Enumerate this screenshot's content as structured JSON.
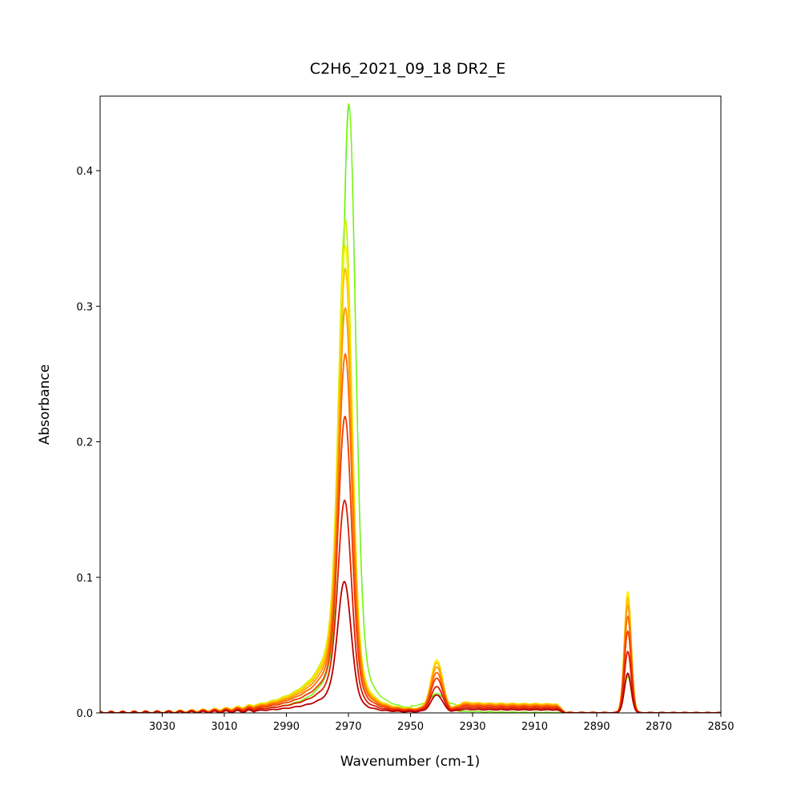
{
  "chart_data": {
    "type": "line",
    "title": "C2H6_2021_09_18 DR2_E",
    "xlabel": "Wavenumber (cm-1)",
    "ylabel": "Absorbance",
    "xlim": [
      3050,
      2850
    ],
    "ylim": [
      0,
      0.455
    ],
    "x_reversed": true,
    "grid": false,
    "legend": "none",
    "x_ticks": [
      3030,
      3010,
      2990,
      2970,
      2950,
      2930,
      2910,
      2890,
      2870,
      2850
    ],
    "y_ticks": [
      0.0,
      0.1,
      0.2,
      0.3,
      0.4
    ],
    "x_tick_labels": [
      "3030",
      "3010",
      "2990",
      "2970",
      "2950",
      "2930",
      "2910",
      "2890",
      "2870",
      "2850"
    ],
    "y_tick_labels": [
      "0.0",
      "0.1",
      "0.2",
      "0.3",
      "0.4"
    ],
    "peak_positions": {
      "main": 2970.5,
      "secondary": 2941.5,
      "sharp": 2880
    },
    "series": [
      {
        "color": "#3fdc3f",
        "main_peak": 0.448,
        "secondary_peak": 0.006,
        "sharp_peak": 0.027,
        "main_center": 2969.8
      },
      {
        "color": "#7cfc00",
        "main_peak": 0.45,
        "secondary_peak": 0.007,
        "sharp_peak": 0.026,
        "main_center": 2969.9
      },
      {
        "color": "#c8f000",
        "main_peak": 0.364,
        "secondary_peak": 0.036,
        "sharp_peak": 0.082,
        "main_center": 2971.0
      },
      {
        "color": "#ffee00",
        "main_peak": 0.345,
        "secondary_peak": 0.038,
        "sharp_peak": 0.089,
        "main_center": 2971.0
      },
      {
        "color": "#ffc400",
        "main_peak": 0.328,
        "secondary_peak": 0.036,
        "sharp_peak": 0.085,
        "main_center": 2971.0
      },
      {
        "color": "#ff9c00",
        "main_peak": 0.299,
        "secondary_peak": 0.033,
        "sharp_peak": 0.079,
        "main_center": 2971.0
      },
      {
        "color": "#ff6a00",
        "main_peak": 0.265,
        "secondary_peak": 0.029,
        "sharp_peak": 0.071,
        "main_center": 2971.0
      },
      {
        "color": "#f03a00",
        "main_peak": 0.219,
        "secondary_peak": 0.025,
        "sharp_peak": 0.06,
        "main_center": 2971.1
      },
      {
        "color": "#dc1e00",
        "main_peak": 0.157,
        "secondary_peak": 0.019,
        "sharp_peak": 0.045,
        "main_center": 2971.2
      },
      {
        "color": "#b80000",
        "main_peak": 0.097,
        "secondary_peak": 0.013,
        "sharp_peak": 0.029,
        "main_center": 2971.3
      }
    ]
  }
}
